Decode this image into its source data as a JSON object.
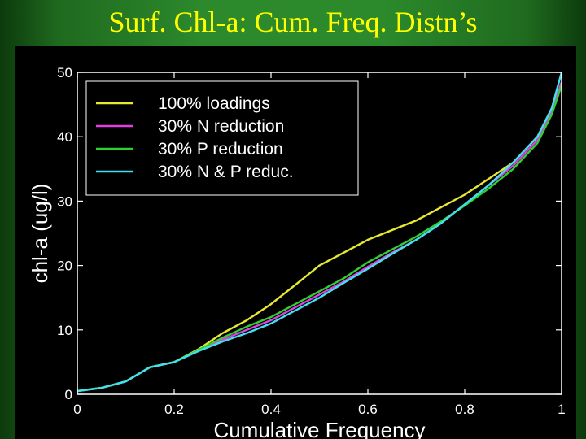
{
  "slide_title": "Surf. Chl-a: Cum. Freq. Distn’s",
  "chart_data": {
    "type": "line",
    "xlabel": "Cumulative Frequency",
    "ylabel": "chl-a (ug/l)",
    "xlim": [
      0,
      1
    ],
    "ylim": [
      0,
      50
    ],
    "xticks": [
      0,
      0.2,
      0.4,
      0.6,
      0.8,
      1
    ],
    "xtick_labels": [
      "0",
      "0.2",
      "0.4",
      "0.6",
      "0.8",
      "1"
    ],
    "yticks": [
      0,
      10,
      20,
      30,
      40,
      50
    ],
    "ytick_labels": [
      "0",
      "10",
      "20",
      "30",
      "40",
      "50"
    ],
    "grid": false,
    "legend_position": "top-left",
    "series": [
      {
        "name": "100% loadings",
        "color": "#e8e830",
        "x": [
          0,
          0.05,
          0.1,
          0.15,
          0.2,
          0.25,
          0.3,
          0.35,
          0.4,
          0.45,
          0.5,
          0.55,
          0.6,
          0.65,
          0.7,
          0.75,
          0.8,
          0.85,
          0.9,
          0.95,
          0.98,
          1
        ],
        "y": [
          0.5,
          1,
          2,
          4.2,
          5,
          7,
          9.5,
          11.5,
          14,
          17,
          20,
          22,
          24,
          25.5,
          27,
          29,
          31,
          33.5,
          36,
          40,
          44,
          48
        ]
      },
      {
        "name": "30% N reduction",
        "color": "#e040e0",
        "x": [
          0,
          0.05,
          0.1,
          0.15,
          0.2,
          0.25,
          0.3,
          0.35,
          0.4,
          0.45,
          0.5,
          0.55,
          0.6,
          0.65,
          0.7,
          0.75,
          0.8,
          0.85,
          0.9,
          0.95,
          0.98,
          1
        ],
        "y": [
          0.5,
          1,
          2,
          4.2,
          5,
          6.8,
          8.5,
          10,
          11.5,
          13.5,
          15.5,
          17.5,
          19.8,
          22,
          24,
          26.5,
          29.5,
          32.5,
          35.5,
          39.5,
          44,
          48.5
        ]
      },
      {
        "name": "30% P reduction",
        "color": "#30d030",
        "x": [
          0,
          0.05,
          0.1,
          0.15,
          0.2,
          0.25,
          0.3,
          0.35,
          0.4,
          0.45,
          0.5,
          0.55,
          0.6,
          0.65,
          0.7,
          0.75,
          0.8,
          0.85,
          0.9,
          0.95,
          0.98,
          1
        ],
        "y": [
          0.5,
          1,
          2,
          4.2,
          5,
          6.9,
          8.8,
          10.5,
          12,
          14,
          16,
          18,
          20.5,
          22.5,
          24.5,
          26.8,
          29.3,
          32,
          35,
          39,
          43.5,
          48
        ]
      },
      {
        "name": "30% N & P reduc.",
        "color": "#40e0f0",
        "x": [
          0,
          0.05,
          0.1,
          0.15,
          0.2,
          0.25,
          0.3,
          0.35,
          0.4,
          0.45,
          0.5,
          0.55,
          0.6,
          0.65,
          0.7,
          0.75,
          0.8,
          0.85,
          0.9,
          0.95,
          0.98,
          1
        ],
        "y": [
          0.5,
          1,
          2,
          4.2,
          5,
          6.7,
          8.2,
          9.5,
          11,
          13,
          15,
          17.3,
          19.5,
          21.8,
          24,
          26.5,
          29.5,
          32.5,
          36,
          40,
          44.5,
          50
        ]
      }
    ]
  }
}
